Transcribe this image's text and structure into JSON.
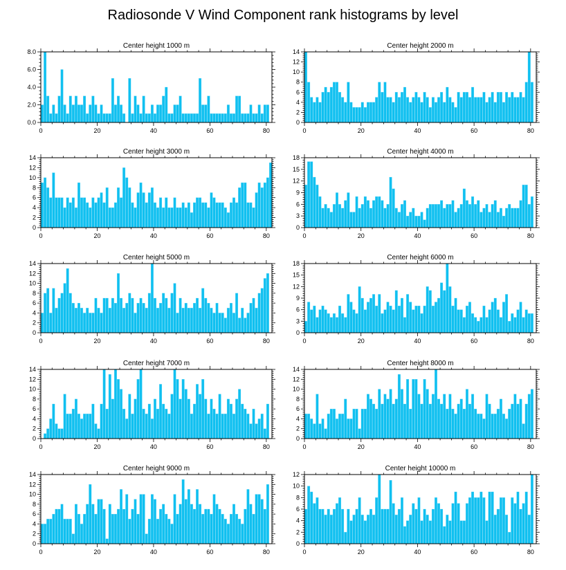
{
  "title": "Radiosonde V Wind Component rank histograms by level",
  "chart_data": [
    {
      "type": "bar",
      "title": "Center height 1000 m",
      "ylim": [
        0,
        8
      ],
      "yticks": [
        0,
        2,
        4,
        6,
        8
      ],
      "ytick_labels": [
        "0.0",
        "2.0",
        "4.0",
        "6.0",
        "8.0"
      ],
      "xticks": [
        0,
        20,
        40,
        60,
        80
      ],
      "xlim": [
        0,
        82
      ],
      "values": [
        2,
        8,
        3,
        1,
        2,
        1,
        3,
        6,
        2,
        1,
        3,
        2,
        3,
        2,
        2,
        3,
        1,
        2,
        3,
        2,
        1,
        2,
        1,
        1,
        1,
        5,
        2,
        3,
        2,
        1,
        0,
        5,
        1,
        3,
        2,
        1,
        3,
        1,
        1,
        2,
        1,
        2,
        2,
        3,
        4,
        1,
        1,
        2,
        2,
        3,
        1,
        1,
        1,
        1,
        1,
        1,
        5,
        2,
        2,
        3,
        1,
        1,
        1,
        1,
        1,
        1,
        2,
        1,
        1,
        3,
        3,
        1,
        1,
        1,
        2,
        1,
        1,
        2,
        1,
        2,
        2
      ]
    },
    {
      "type": "bar",
      "title": "Center height 2000 m",
      "ylim": [
        0,
        14
      ],
      "yticks": [
        0,
        2,
        4,
        6,
        8,
        10,
        12,
        14
      ],
      "ytick_labels": [
        "0",
        "2",
        "4",
        "6",
        "8",
        "10",
        "12",
        "14"
      ],
      "xticks": [
        0,
        20,
        40,
        60,
        80
      ],
      "xlim": [
        0,
        82
      ],
      "values": [
        14,
        8,
        5,
        4,
        5,
        4,
        6,
        7,
        6,
        7,
        8,
        8,
        6,
        5,
        4,
        8,
        4,
        3,
        3,
        3,
        4,
        3,
        4,
        4,
        4,
        5,
        8,
        6,
        8,
        5,
        5,
        4,
        6,
        5,
        6,
        7,
        5,
        4,
        5,
        6,
        5,
        4,
        6,
        5,
        3,
        5,
        4,
        5,
        6,
        4,
        7,
        5,
        4,
        3,
        6,
        5,
        6,
        6,
        5,
        7,
        5,
        5,
        5,
        6,
        4,
        5,
        6,
        4,
        6,
        6,
        4,
        6,
        5,
        6,
        5,
        5,
        6,
        5,
        8,
        14,
        8
      ]
    },
    {
      "type": "bar",
      "title": "Center height 3000 m",
      "ylim": [
        0,
        14
      ],
      "yticks": [
        0,
        2,
        4,
        6,
        8,
        10,
        12,
        14
      ],
      "ytick_labels": [
        "0",
        "2",
        "4",
        "6",
        "8",
        "10",
        "12",
        "14"
      ],
      "xticks": [
        0,
        20,
        40,
        60,
        80
      ],
      "xlim": [
        0,
        82
      ],
      "values": [
        9,
        10,
        8,
        6,
        11,
        6,
        6,
        6,
        4,
        6,
        5,
        6,
        4,
        9,
        6,
        6,
        5,
        4,
        6,
        5,
        6,
        7,
        5,
        8,
        4,
        4,
        5,
        8,
        6,
        12,
        10,
        8,
        5,
        4,
        7,
        9,
        7,
        5,
        7,
        8,
        5,
        4,
        6,
        4,
        6,
        4,
        4,
        6,
        4,
        4,
        5,
        4,
        5,
        3,
        5,
        6,
        6,
        5,
        5,
        4,
        7,
        6,
        5,
        5,
        5,
        4,
        3,
        5,
        6,
        5,
        8,
        9,
        9,
        5,
        5,
        4,
        7,
        9,
        8,
        9,
        10,
        13
      ]
    },
    {
      "type": "bar",
      "title": "Center height 4000 m",
      "ylim": [
        0,
        18
      ],
      "yticks": [
        0,
        3,
        6,
        9,
        12,
        15,
        18
      ],
      "ytick_labels": [
        "0",
        "3",
        "6",
        "9",
        "12",
        "15",
        "18"
      ],
      "xticks": [
        0,
        20,
        40,
        60,
        80
      ],
      "xlim": [
        0,
        82
      ],
      "values": [
        11,
        17,
        17,
        13,
        11,
        8,
        5,
        6,
        5,
        4,
        6,
        9,
        6,
        5,
        7,
        9,
        4,
        4,
        8,
        5,
        6,
        8,
        7,
        5,
        7,
        8,
        8,
        7,
        5,
        6,
        13,
        10,
        5,
        4,
        6,
        7,
        3,
        4,
        5,
        3,
        3,
        4,
        2,
        5,
        6,
        6,
        6,
        6,
        7,
        5,
        6,
        6,
        7,
        4,
        5,
        6,
        10,
        7,
        6,
        8,
        6,
        7,
        4,
        5,
        6,
        4,
        6,
        7,
        4,
        5,
        3,
        5,
        6,
        5,
        5,
        5,
        7,
        11,
        11,
        6,
        8
      ]
    },
    {
      "type": "bar",
      "title": "Center height 5000 m",
      "ylim": [
        0,
        14
      ],
      "yticks": [
        0,
        2,
        4,
        6,
        8,
        10,
        12,
        14
      ],
      "ytick_labels": [
        "0",
        "2",
        "4",
        "6",
        "8",
        "10",
        "12",
        "14"
      ],
      "xticks": [
        0,
        20,
        40,
        60,
        80
      ],
      "xlim": [
        0,
        82
      ],
      "values": [
        4,
        8,
        9,
        4,
        9,
        5,
        7,
        8,
        10,
        13,
        8,
        6,
        5,
        6,
        5,
        4,
        5,
        4,
        4,
        7,
        5,
        4,
        7,
        7,
        5,
        7,
        6,
        12,
        7,
        5,
        6,
        8,
        7,
        4,
        6,
        7,
        6,
        5,
        8,
        14,
        7,
        5,
        6,
        8,
        7,
        5,
        8,
        10,
        4,
        7,
        5,
        6,
        5,
        5,
        6,
        7,
        5,
        9,
        7,
        6,
        5,
        4,
        6,
        4,
        4,
        3,
        5,
        6,
        4,
        8,
        3,
        5,
        3,
        4,
        6,
        7,
        5,
        8,
        9,
        11,
        12
      ]
    },
    {
      "type": "bar",
      "title": "Center height 6000 m",
      "ylim": [
        0,
        18
      ],
      "yticks": [
        0,
        3,
        6,
        9,
        12,
        15,
        18
      ],
      "ytick_labels": [
        "0",
        "3",
        "6",
        "9",
        "12",
        "15",
        "18"
      ],
      "xticks": [
        0,
        20,
        40,
        60,
        80
      ],
      "xlim": [
        0,
        82
      ],
      "values": [
        3,
        8,
        6,
        7,
        4,
        6,
        7,
        6,
        5,
        4,
        5,
        4,
        7,
        5,
        4,
        10,
        8,
        6,
        5,
        12,
        9,
        6,
        8,
        9,
        10,
        7,
        10,
        5,
        6,
        8,
        7,
        6,
        11,
        7,
        9,
        4,
        10,
        8,
        6,
        7,
        7,
        5,
        7,
        12,
        11,
        7,
        8,
        9,
        13,
        11,
        18,
        12,
        7,
        9,
        6,
        6,
        4,
        7,
        8,
        5,
        4,
        3,
        4,
        7,
        4,
        6,
        8,
        9,
        6,
        4,
        8,
        10,
        3,
        5,
        4,
        6,
        8,
        4,
        6,
        5,
        5
      ]
    },
    {
      "type": "bar",
      "title": "Center height 7000 m",
      "ylim": [
        0,
        14
      ],
      "yticks": [
        0,
        2,
        4,
        6,
        8,
        10,
        12,
        14
      ],
      "ytick_labels": [
        "0",
        "2",
        "4",
        "6",
        "8",
        "10",
        "12",
        "14"
      ],
      "xticks": [
        0,
        20,
        40,
        60,
        80
      ],
      "xlim": [
        0,
        82
      ],
      "values": [
        0,
        1,
        2,
        4,
        7,
        3,
        2,
        2,
        9,
        5,
        5,
        6,
        8,
        5,
        4,
        5,
        5,
        5,
        7,
        3,
        2,
        7,
        14,
        6,
        13,
        8,
        14,
        12,
        10,
        6,
        4,
        9,
        5,
        8,
        12,
        14,
        6,
        5,
        7,
        4,
        8,
        6,
        11,
        7,
        6,
        5,
        9,
        14,
        12,
        8,
        12,
        10,
        8,
        5,
        7,
        11,
        9,
        12,
        8,
        5,
        8,
        6,
        5,
        9,
        5,
        5,
        8,
        7,
        5,
        8,
        10,
        7,
        6,
        5,
        3,
        6,
        3,
        4,
        5,
        2,
        7
      ]
    },
    {
      "type": "bar",
      "title": "Center height 8000 m",
      "ylim": [
        0,
        14
      ],
      "yticks": [
        0,
        2,
        4,
        6,
        8,
        10,
        12,
        14
      ],
      "ytick_labels": [
        "0",
        "2",
        "4",
        "6",
        "8",
        "10",
        "12",
        "14"
      ],
      "xticks": [
        0,
        20,
        40,
        60,
        80
      ],
      "xlim": [
        0,
        82
      ],
      "values": [
        5,
        5,
        4,
        3,
        9,
        3,
        4,
        2,
        5,
        6,
        6,
        4,
        5,
        5,
        8,
        4,
        4,
        6,
        6,
        2,
        6,
        6,
        9,
        8,
        7,
        6,
        10,
        7,
        9,
        8,
        10,
        7,
        8,
        13,
        10,
        7,
        12,
        6,
        12,
        12,
        9,
        7,
        12,
        10,
        7,
        9,
        14,
        8,
        7,
        9,
        6,
        9,
        6,
        5,
        7,
        8,
        6,
        10,
        7,
        9,
        6,
        5,
        5,
        4,
        9,
        7,
        5,
        5,
        6,
        8,
        5,
        4,
        6,
        7,
        9,
        7,
        8,
        3,
        7,
        9,
        10
      ]
    },
    {
      "type": "bar",
      "title": "Center height 9000 m",
      "ylim": [
        0,
        14
      ],
      "yticks": [
        0,
        2,
        4,
        6,
        8,
        10,
        12,
        14
      ],
      "ytick_labels": [
        "0",
        "2",
        "4",
        "6",
        "8",
        "10",
        "12",
        "14"
      ],
      "xticks": [
        0,
        20,
        40,
        60,
        80
      ],
      "xlim": [
        0,
        82
      ],
      "values": [
        4,
        4,
        5,
        5,
        6,
        7,
        7,
        8,
        5,
        5,
        5,
        2,
        8,
        6,
        4,
        6,
        8,
        12,
        8,
        6,
        9,
        9,
        7,
        1,
        8,
        6,
        6,
        7,
        11,
        7,
        10,
        5,
        7,
        9,
        6,
        10,
        10,
        2,
        5,
        10,
        9,
        5,
        7,
        8,
        6,
        5,
        4,
        10,
        6,
        8,
        13,
        9,
        11,
        8,
        7,
        11,
        8,
        6,
        7,
        7,
        6,
        10,
        8,
        7,
        6,
        5,
        4,
        6,
        8,
        6,
        5,
        4,
        7,
        11,
        8,
        6,
        10,
        10,
        9,
        7,
        12
      ]
    },
    {
      "type": "bar",
      "title": "Center height 10000 m",
      "ylim": [
        0,
        12
      ],
      "yticks": [
        0,
        2,
        4,
        6,
        8,
        10,
        12
      ],
      "ytick_labels": [
        "0",
        "2",
        "4",
        "6",
        "8",
        "10",
        "12"
      ],
      "xticks": [
        0,
        20,
        40,
        60,
        80
      ],
      "xlim": [
        0,
        82
      ],
      "values": [
        6,
        10,
        9,
        7,
        8,
        6,
        6,
        5,
        6,
        5,
        6,
        7,
        8,
        6,
        2,
        6,
        4,
        5,
        6,
        8,
        5,
        4,
        5,
        6,
        5,
        8,
        12,
        6,
        6,
        6,
        11,
        7,
        5,
        6,
        8,
        3,
        4,
        5,
        7,
        6,
        8,
        4,
        6,
        5,
        4,
        6,
        8,
        7,
        6,
        3,
        5,
        4,
        7,
        9,
        7,
        4,
        4,
        7,
        8,
        9,
        8,
        8,
        9,
        8,
        4,
        9,
        9,
        5,
        6,
        8,
        8,
        5,
        2,
        8,
        7,
        9,
        6,
        7,
        9,
        5,
        12
      ]
    }
  ]
}
